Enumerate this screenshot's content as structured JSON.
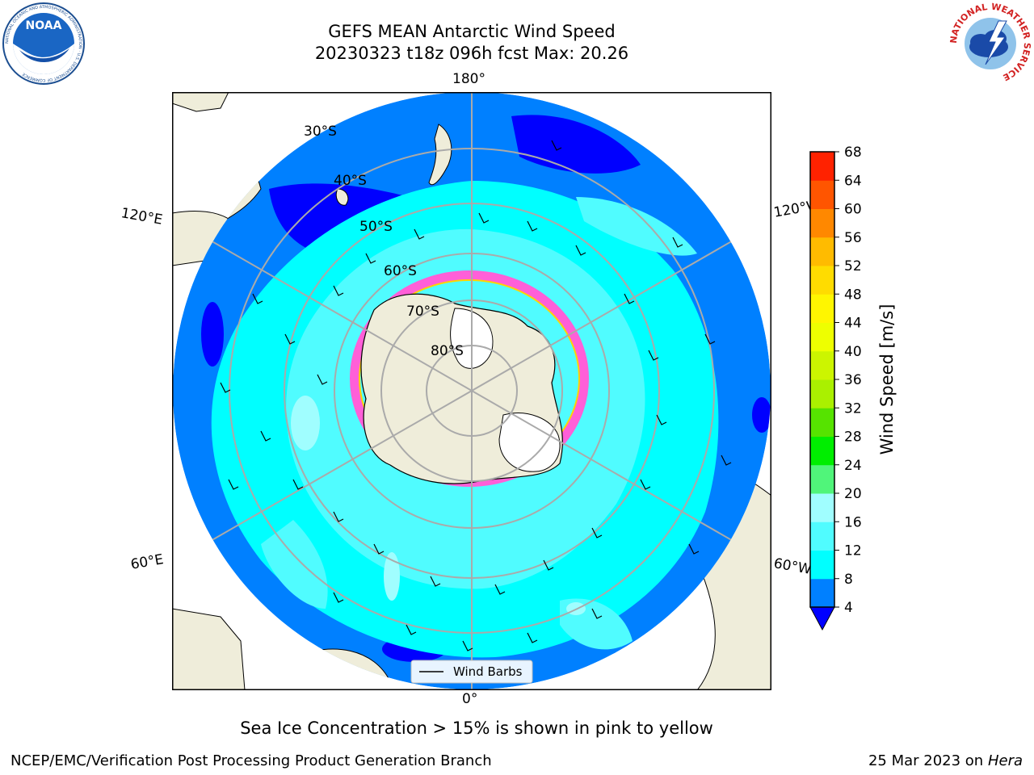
{
  "title": {
    "line1": "GEFS MEAN Antarctic Wind Speed",
    "line2": "20230323 t18z 096h fcst   Max: 20.26"
  },
  "logos": {
    "left": {
      "icon": "noaa-logo-icon",
      "text": "NOAA",
      "ring_text": "NATIONAL OCEANIC AND ATMOSPHERIC ADMINISTRATION · U.S. DEPARTMENT OF COMMERCE"
    },
    "right": {
      "icon": "nws-logo-icon",
      "ring_text": "NATIONAL WEATHER SERVICE"
    }
  },
  "map": {
    "projection": "south-polar-stereographic",
    "longitude_labels": {
      "top": "180°",
      "bottom": "0°",
      "upper_left": "120°E",
      "lower_left": "60°E",
      "upper_right": "120°W",
      "lower_right": "60°W"
    },
    "latitude_labels": [
      "30°S",
      "40°S",
      "50°S",
      "60°S",
      "70°S",
      "80°S"
    ],
    "legend": {
      "label": "Wind Barbs"
    },
    "colors": {
      "land": "#efedda",
      "ocean_lt4": "#0000ff",
      "ocean_4_8": "#0080ff",
      "ocean_8_12": "#00ffff",
      "ocean_12_16": "#50fcff",
      "ice_pink": "#ff5fd8",
      "ice_yellow": "#ffd400",
      "antarctic_ice_shelf": "#ffffff"
    }
  },
  "colorbar": {
    "label": "Wind Speed [m/s]",
    "ticks": [
      4,
      8,
      12,
      16,
      20,
      24,
      28,
      32,
      36,
      40,
      44,
      48,
      52,
      56,
      60,
      64,
      68
    ],
    "colors": [
      "#0080ff",
      "#00ffff",
      "#50fcff",
      "#a0feff",
      "#50f57a",
      "#00ee00",
      "#56e300",
      "#aaf000",
      "#ccf500",
      "#eeff00",
      "#fff600",
      "#ffdc00",
      "#ffbb00",
      "#ff8800",
      "#ff5500",
      "#ff2200"
    ],
    "under_color": "#0000ff"
  },
  "footer": {
    "note": "Sea Ice Concentration > 15% is shown in pink to yellow",
    "left": "NCEP/EMC/Verification Post Processing Product Generation Branch",
    "right_date": "25 Mar 2023 on",
    "right_machine": "Hera"
  }
}
